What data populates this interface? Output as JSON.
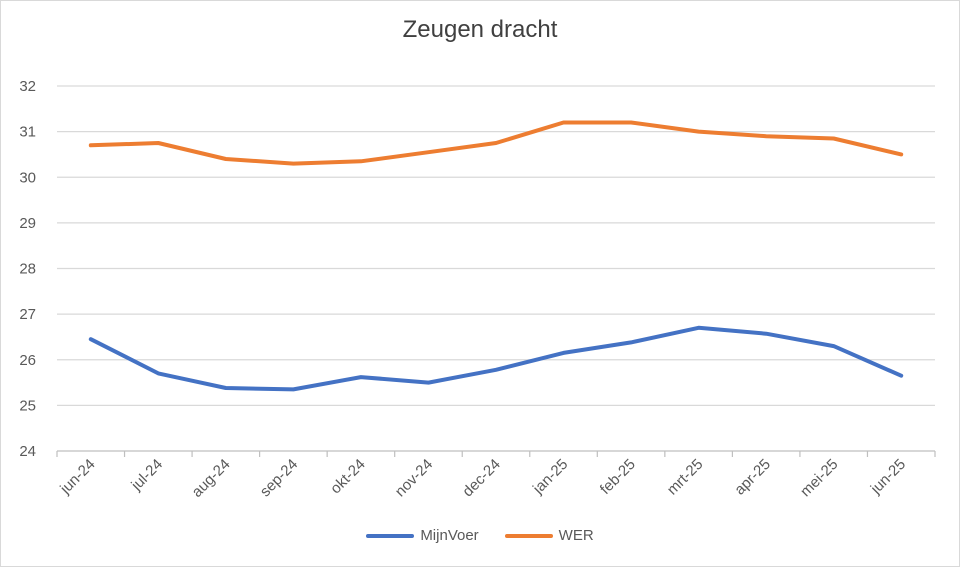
{
  "chart_data": {
    "type": "line",
    "title": "Zeugen dracht",
    "xlabel": "",
    "ylabel": "",
    "categories": [
      "jun-24",
      "jul-24",
      "aug-24",
      "sep-24",
      "okt-24",
      "nov-24",
      "dec-24",
      "jan-25",
      "feb-25",
      "mrt-25",
      "apr-25",
      "mei-25",
      "jun-25"
    ],
    "ylim": [
      24,
      32
    ],
    "yticks": [
      "24",
      "25",
      "26",
      "27",
      "28",
      "29",
      "30",
      "31",
      "32"
    ],
    "grid": true,
    "legend_position": "bottom",
    "series": [
      {
        "name": "MijnVoer",
        "color": "#4472C4",
        "values": [
          26.45,
          25.7,
          25.38,
          25.35,
          25.62,
          25.5,
          25.78,
          26.15,
          26.38,
          26.7,
          26.57,
          26.3,
          25.65
        ]
      },
      {
        "name": "WER",
        "color": "#ED7D31",
        "values": [
          30.7,
          30.75,
          30.4,
          30.3,
          30.35,
          30.55,
          30.75,
          31.2,
          31.2,
          31.0,
          30.9,
          30.85,
          30.5
        ]
      }
    ]
  }
}
